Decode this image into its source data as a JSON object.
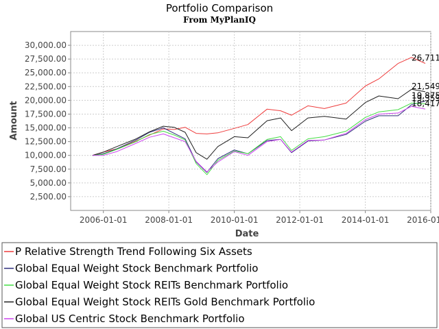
{
  "chart_data": {
    "type": "line",
    "title": "Portfolio Comparison",
    "subtitle": "From MyPlanIQ",
    "xlabel": "Date",
    "ylabel": "Amount",
    "x_ticks": [
      "2006-01-01",
      "2008-01-01",
      "2010-01-01",
      "2012-01-01",
      "2014-01-01",
      "2016-01-01"
    ],
    "y_ticks": [
      "2,500.00",
      "5,000.00",
      "7,500.00",
      "10,000.00",
      "12,500.00",
      "15,000.00",
      "17,500.00",
      "20,000.00",
      "22,500.00",
      "25,000.00",
      "27,500.00",
      "30,000.00"
    ],
    "xlim": [
      "2005-01-01",
      "2016-01-01"
    ],
    "ylim": [
      0,
      32500
    ],
    "grid": true,
    "legend_position": "bottom",
    "series": [
      {
        "name": "P Relative Strength Trend Following Six Assets",
        "color": "#ee3b3b",
        "end_label": "26,711",
        "x": [
          "2005-09-01",
          "2006-01-01",
          "2006-06-01",
          "2007-01-01",
          "2007-06-01",
          "2007-11-01",
          "2008-03-01",
          "2008-07-01",
          "2008-11-01",
          "2009-03-01",
          "2009-07-01",
          "2010-01-01",
          "2010-06-01",
          "2011-01-01",
          "2011-06-01",
          "2011-10-01",
          "2012-04-01",
          "2012-10-01",
          "2013-06-01",
          "2014-01-01",
          "2014-06-01",
          "2015-01-01",
          "2015-06-01",
          "2015-11-01"
        ],
        "y": [
          10000,
          10600,
          11200,
          12600,
          13700,
          14800,
          14700,
          15100,
          14000,
          13900,
          14100,
          14900,
          15600,
          18400,
          18100,
          17300,
          19000,
          18500,
          19500,
          22600,
          23900,
          26700,
          27800,
          26711
        ]
      },
      {
        "name": "Global Equal Weight Stock Benchmark Portfolio",
        "color": "#2c2c7a",
        "end_label": "19,875",
        "x": [
          "2005-09-01",
          "2006-01-01",
          "2006-06-01",
          "2007-01-01",
          "2007-06-01",
          "2007-11-01",
          "2008-03-01",
          "2008-07-01",
          "2008-11-01",
          "2009-03-01",
          "2009-07-01",
          "2010-01-01",
          "2010-06-01",
          "2011-01-01",
          "2011-06-01",
          "2011-10-01",
          "2012-04-01",
          "2012-10-01",
          "2013-06-01",
          "2014-01-01",
          "2014-06-01",
          "2015-01-01",
          "2015-06-01",
          "2015-11-01"
        ],
        "y": [
          10000,
          10300,
          11200,
          12800,
          14200,
          15000,
          14000,
          13000,
          8800,
          6900,
          9400,
          11000,
          10300,
          12700,
          12900,
          10500,
          12600,
          12800,
          13800,
          16200,
          17200,
          17200,
          19200,
          19875
        ]
      },
      {
        "name": "Global Equal Weight Stock REITs Benchmark Portfolio",
        "color": "#44dd44",
        "end_label": "19,359",
        "x": [
          "2005-09-01",
          "2006-01-01",
          "2006-06-01",
          "2007-01-01",
          "2007-06-01",
          "2007-11-01",
          "2008-03-01",
          "2008-07-01",
          "2008-11-01",
          "2009-03-01",
          "2009-07-01",
          "2010-01-01",
          "2010-06-01",
          "2011-01-01",
          "2011-06-01",
          "2011-10-01",
          "2012-04-01",
          "2012-10-01",
          "2013-06-01",
          "2014-01-01",
          "2014-06-01",
          "2015-01-01",
          "2015-06-01",
          "2015-11-01"
        ],
        "y": [
          10000,
          10200,
          11100,
          12500,
          13800,
          14400,
          13700,
          12800,
          8500,
          6500,
          9100,
          10800,
          10300,
          12900,
          13400,
          10900,
          13000,
          13400,
          14400,
          16900,
          17900,
          18300,
          19500,
          19359
        ]
      },
      {
        "name": "Global Equal Weight Stock REITs Gold Benchmark Portfolio",
        "color": "#1e1e1e",
        "end_label": "21,549",
        "x": [
          "2005-09-01",
          "2006-01-01",
          "2006-06-01",
          "2007-01-01",
          "2007-06-01",
          "2007-11-01",
          "2008-03-01",
          "2008-07-01",
          "2008-11-01",
          "2009-03-01",
          "2009-07-01",
          "2010-01-01",
          "2010-06-01",
          "2011-01-01",
          "2011-06-01",
          "2011-10-01",
          "2012-04-01",
          "2012-10-01",
          "2013-06-01",
          "2014-01-01",
          "2014-06-01",
          "2015-01-01",
          "2015-06-01",
          "2015-11-01"
        ],
        "y": [
          10000,
          10600,
          11600,
          13000,
          14300,
          15300,
          15100,
          14200,
          10500,
          9300,
          11600,
          13400,
          13200,
          16300,
          16800,
          14500,
          16800,
          17100,
          16600,
          19600,
          20800,
          20300,
          22000,
          21549
        ]
      },
      {
        "name": "Global US Centric Stock Benchmark Portfolio",
        "color": "#cc44ee",
        "end_label": "18,417",
        "x": [
          "2005-09-01",
          "2006-01-01",
          "2006-06-01",
          "2007-01-01",
          "2007-06-01",
          "2007-11-01",
          "2008-03-01",
          "2008-07-01",
          "2008-11-01",
          "2009-03-01",
          "2009-07-01",
          "2010-01-01",
          "2010-06-01",
          "2011-01-01",
          "2011-06-01",
          "2011-10-01",
          "2012-04-01",
          "2012-10-01",
          "2013-06-01",
          "2014-01-01",
          "2014-06-01",
          "2015-01-01",
          "2015-06-01",
          "2015-11-01"
        ],
        "y": [
          10000,
          10000,
          10700,
          12200,
          13300,
          13900,
          13200,
          12500,
          8900,
          7000,
          8800,
          10700,
          10000,
          12500,
          12900,
          10600,
          12700,
          12800,
          14000,
          16500,
          17500,
          17700,
          18900,
          18417
        ]
      }
    ]
  }
}
